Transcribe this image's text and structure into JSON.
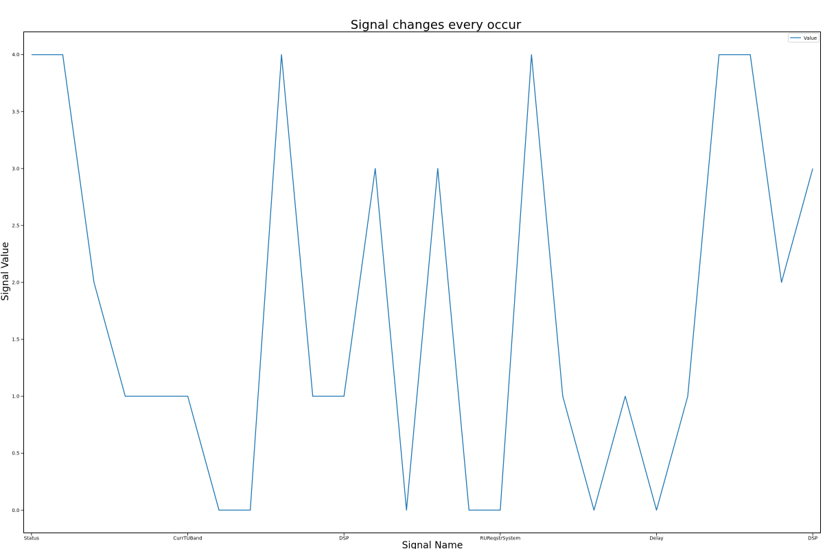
{
  "chart_data": {
    "type": "line",
    "title": "Signal changes every occur",
    "xlabel": "Signal Name",
    "ylabel": "Signal Value",
    "x_tick_labels": [
      {
        "index": 0,
        "label": "Status"
      },
      {
        "index": 5,
        "label": "CurrTUBand"
      },
      {
        "index": 10,
        "label": "DSP"
      },
      {
        "index": 15,
        "label": "RUReqstrSystem"
      },
      {
        "index": 20,
        "label": "Delay"
      },
      {
        "index": 25,
        "label": "DSP"
      }
    ],
    "y_ticks": [
      "0.0",
      "0.5",
      "1.0",
      "1.5",
      "2.0",
      "2.5",
      "3.0",
      "3.5",
      "4.0"
    ],
    "ylim": [
      -0.2,
      4.2
    ],
    "xlim": [
      -0.25,
      25.25
    ],
    "grid": false,
    "legend_position": "top-right",
    "series": [
      {
        "name": "Value",
        "color": "#1f77b4",
        "values": [
          4,
          4,
          2,
          1,
          1,
          1,
          0,
          0,
          4,
          1,
          1,
          3,
          0,
          3,
          0,
          0,
          4,
          1,
          0,
          1,
          0,
          1,
          4,
          4,
          2,
          3
        ]
      }
    ]
  }
}
